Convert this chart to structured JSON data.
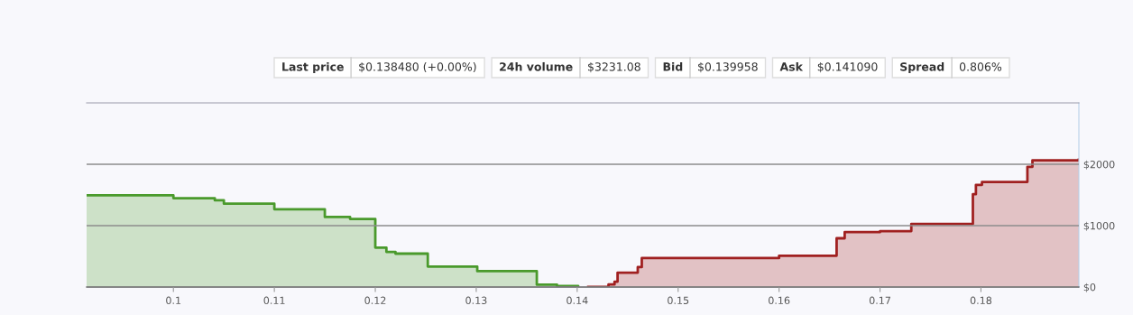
{
  "chart_data": {
    "type": "step",
    "annotations": [
      "Last price",
      "$0.138480 (+0.00%)",
      "24h volume",
      "$3231.08",
      "Bid",
      "$0.139958",
      "Ask",
      "$0.141090",
      "Spread",
      "0.806%"
    ],
    "series": [
      {
        "color": "#4a9a2c",
        "x": [
          0.0914,
          0.1,
          0.1041,
          0.105,
          0.11,
          0.115,
          0.1175,
          0.12,
          0.1211,
          0.122,
          0.1252,
          0.1301,
          0.136,
          0.138,
          0.1401
        ],
        "values": [
          1494,
          1447,
          1412,
          1357,
          1268,
          1141,
          1110,
          643,
          573,
          544,
          333,
          259,
          38,
          18,
          0
        ]
      },
      {
        "color": "#a02020",
        "x": [
          0.1411,
          0.1431,
          0.1437,
          0.144,
          0.146,
          0.1464,
          0.16,
          0.1657,
          0.1665,
          0.17,
          0.1731,
          0.1792,
          0.1795,
          0.1801,
          0.1846,
          0.1851,
          0.1897
        ],
        "values": [
          0,
          41,
          88,
          235,
          324,
          471,
          510,
          794,
          894,
          910,
          1029,
          1512,
          1665,
          1712,
          1959,
          2065,
          2076
        ]
      }
    ],
    "xlim": [
      0.0914,
      0.1897
    ],
    "xticks": [
      0.1,
      0.11,
      0.12,
      0.13,
      0.14,
      0.15,
      0.16,
      0.17,
      0.18
    ],
    "ylim": [
      0,
      3000
    ],
    "yticks": [
      {
        "value": 0,
        "label": "$0"
      },
      {
        "value": 1000,
        "label": "$1000"
      },
      {
        "value": 2000,
        "label": "$2000"
      }
    ],
    "grid": "y",
    "legend": false
  }
}
